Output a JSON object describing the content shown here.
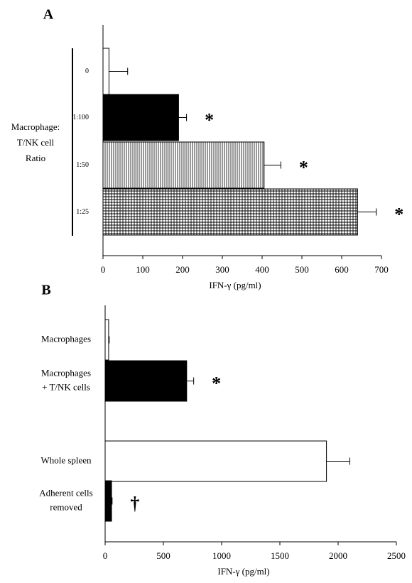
{
  "chart_data": [
    {
      "type": "hbar",
      "panel_label": "A",
      "ylabel": [
        "Macrophage:",
        "T/NK cell",
        "Ratio"
      ],
      "xlabel": "IFN-γ (pg/ml)",
      "categories": [
        [
          "0"
        ],
        [
          "1:100"
        ],
        [
          "1:50"
        ],
        [
          "1:25"
        ]
      ],
      "values": [
        15,
        190,
        405,
        640
      ],
      "errors": [
        47,
        20,
        42,
        47
      ],
      "fills": [
        "white",
        "black",
        "vertical-lines",
        "grid"
      ],
      "annotations": [
        null,
        "*",
        "*",
        "*"
      ],
      "xlim": [
        0,
        700
      ],
      "xticks": [
        0,
        100,
        200,
        300,
        400,
        500,
        600,
        700
      ]
    },
    {
      "type": "hbar",
      "panel_label": "B",
      "xlabel": "IFN-γ (pg/ml)",
      "categories": [
        [
          "Macrophages"
        ],
        [
          "Macrophages",
          "+ T/NK cells"
        ],
        [
          "Whole spleen"
        ],
        [
          "Adherent cells",
          "removed"
        ]
      ],
      "values": [
        30,
        700,
        1900,
        55
      ],
      "errors": [
        5,
        60,
        200,
        5
      ],
      "fills": [
        "white",
        "black",
        "white",
        "black"
      ],
      "annotations": [
        null,
        "*",
        null,
        "†"
      ],
      "xlim": [
        0,
        2500
      ],
      "xticks": [
        0,
        500,
        1000,
        1500,
        2000,
        2500
      ]
    }
  ]
}
